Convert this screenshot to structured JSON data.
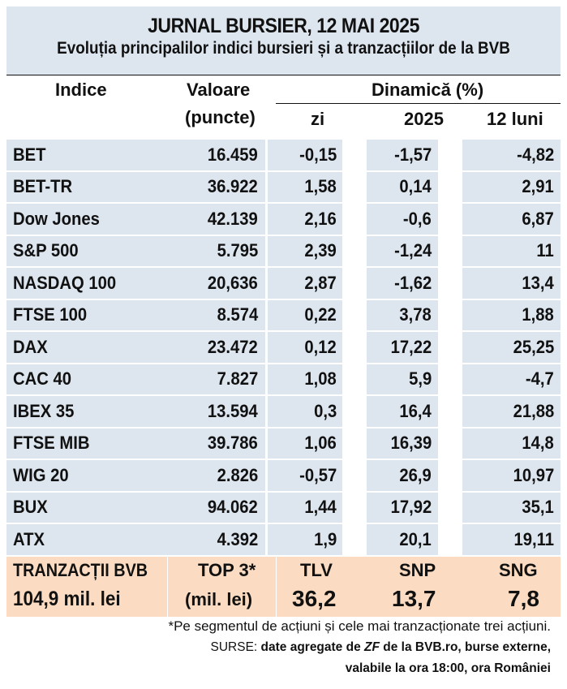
{
  "title": "JURNAL BURSIER, 12 MAI 2025",
  "subtitle": "Evoluția principalilor indici bursieri și a tranzacțiilor de la BVB",
  "headers": {
    "index": "Indice",
    "value_line1": "Valoare",
    "value_line2": "(puncte)",
    "dynamics": "Dinamică (%)",
    "day": "zi",
    "ytd": "2025",
    "months12": "12 luni"
  },
  "rows": [
    {
      "name": "BET",
      "value": "16.459",
      "day": "-0,15",
      "ytd": "-1,57",
      "m12": "-4,82"
    },
    {
      "name": "BET-TR",
      "value": "36.922",
      "day": "1,58",
      "ytd": "0,14",
      "m12": "2,91"
    },
    {
      "name": "Dow Jones",
      "value": "42.139",
      "day": "2,16",
      "ytd": "-0,6",
      "m12": "6,87"
    },
    {
      "name": "S&P 500",
      "value": "5.795",
      "day": "2,39",
      "ytd": "-1,24",
      "m12": "11"
    },
    {
      "name": "NASDAQ 100",
      "value": "20,636",
      "day": "2,87",
      "ytd": "-1,62",
      "m12": "13,4"
    },
    {
      "name": "FTSE 100",
      "value": "8.574",
      "day": "0,22",
      "ytd": "3,78",
      "m12": "1,88"
    },
    {
      "name": "DAX",
      "value": "23.472",
      "day": "0,12",
      "ytd": "17,22",
      "m12": "25,25"
    },
    {
      "name": "CAC 40",
      "value": "7.827",
      "day": "1,08",
      "ytd": "5,9",
      "m12": "-4,7"
    },
    {
      "name": "IBEX 35",
      "value": "13.594",
      "day": "0,3",
      "ytd": "16,4",
      "m12": "21,88"
    },
    {
      "name": "FTSE MIB",
      "value": "39.786",
      "day": "1,06",
      "ytd": "16,39",
      "m12": "14,8"
    },
    {
      "name": "WIG 20",
      "value": "2.826",
      "day": "-0,57",
      "ytd": "26,9",
      "m12": "10,97"
    },
    {
      "name": "BUX",
      "value": "94.062",
      "day": "1,44",
      "ytd": "17,92",
      "m12": "35,1"
    },
    {
      "name": "ATX",
      "value": "4.392",
      "day": "1,9",
      "ytd": "20,1",
      "m12": "19,11"
    }
  ],
  "bvb": {
    "label": "TRANZACȚII BVB",
    "total": "104,9 mil. lei",
    "top3_label": "TOP 3*",
    "top3_unit": "(mil. lei)",
    "stocks": [
      {
        "symbol": "TLV",
        "value": "36,2"
      },
      {
        "symbol": "SNP",
        "value": "13,7"
      },
      {
        "symbol": "SNG",
        "value": "7,8"
      }
    ]
  },
  "footnote": "*Pe segmentul de acțiuni și cele mai tranzacționate trei acțiuni.",
  "sources": {
    "prefix": "SURSE: ",
    "text1": "date agregate de ",
    "zf": "ZF",
    "text2": " de la BVB.ro, burse externe,",
    "line2": "valabile la ora 18:00, ora României"
  }
}
